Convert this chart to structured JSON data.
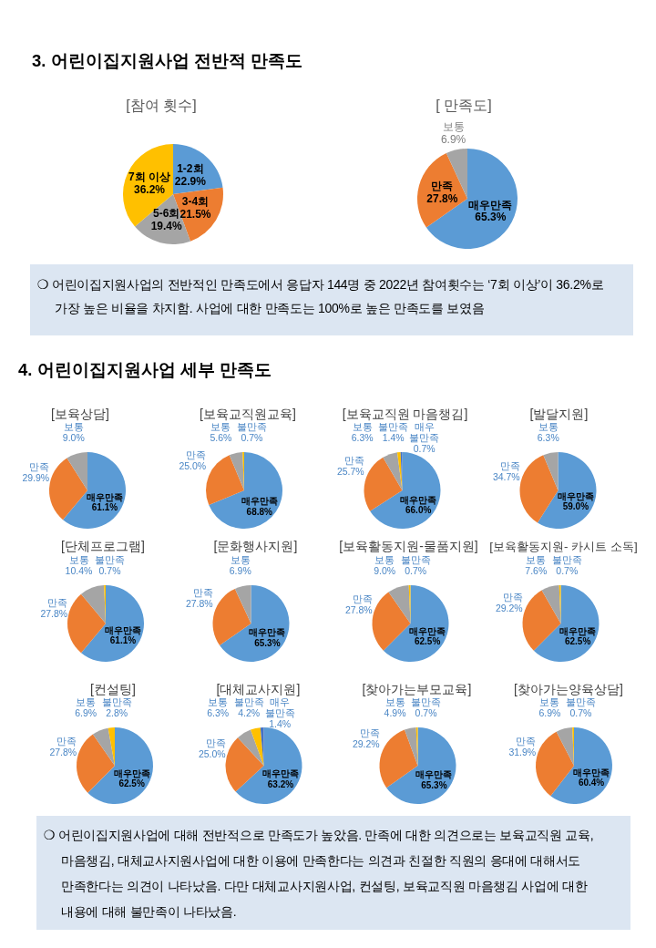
{
  "chart_data": [
    {
      "type": "other",
      "title": "3. 어린이집지원사업 전반적 만족도"
    },
    {
      "type": "pie",
      "title": "[참여 횟수]",
      "categories": [
        "1-2회",
        "3-4회",
        "5-6회",
        "7회 이상"
      ],
      "values": [
        22.9,
        21.5,
        19.4,
        36.2
      ],
      "value_labels": [
        "22.9%",
        "21.5%",
        "19.4%",
        "36.2%"
      ],
      "colors": [
        "#5b9bd5",
        "#ed7d31",
        "#a5a5a5",
        "#ffc000"
      ]
    },
    {
      "type": "pie",
      "title": "[ 만족도]",
      "categories": [
        "매우만족",
        "만족",
        "보통"
      ],
      "values": [
        65.3,
        27.8,
        6.9
      ],
      "value_labels": [
        "65.3%",
        "27.8%",
        "6.9%"
      ],
      "colors": [
        "#5b9bd5",
        "#ed7d31",
        "#a5a5a5"
      ]
    },
    {
      "type": "other",
      "annotations": [
        "❍ 어린이집지원사업의 전반적인 만족도에서 응답자 144명 중 2022년 참여횟수는 ‘7회 이상’이 36.2%로 가장 높은 비율을 차지함. 사업에 대한 만족도는 100%로 높은 만족도를 보였음"
      ]
    },
    {
      "type": "other",
      "title": "4. 어린이집지원사업 세부 만족도"
    },
    {
      "type": "pie",
      "title": "[보육상담]",
      "categories": [
        "매우만족",
        "만족",
        "보통"
      ],
      "values": [
        61.1,
        29.9,
        9.0
      ],
      "value_labels": [
        "61.1%",
        "29.9%",
        "9.0%"
      ],
      "colors": [
        "#5b9bd5",
        "#ed7d31",
        "#a5a5a5"
      ]
    },
    {
      "type": "pie",
      "title": "[보육교직원교육]",
      "categories": [
        "매우만족",
        "만족",
        "보통",
        "불만족"
      ],
      "values": [
        68.8,
        25.0,
        5.6,
        0.7
      ],
      "value_labels": [
        "68.8%",
        "25.0%",
        "5.6%",
        "0.7%"
      ],
      "colors": [
        "#5b9bd5",
        "#ed7d31",
        "#a5a5a5",
        "#ffc000"
      ]
    },
    {
      "type": "pie",
      "title": "[보육교직원 마음챙김]",
      "categories": [
        "매우만족",
        "만족",
        "보통",
        "불만족",
        "매우\n불만족"
      ],
      "values": [
        66.0,
        25.7,
        6.3,
        1.4,
        0.7
      ],
      "value_labels": [
        "66.0%",
        "25.7%",
        "6.3%",
        "1.4%",
        "0.7%"
      ],
      "colors": [
        "#5b9bd5",
        "#ed7d31",
        "#a5a5a5",
        "#ffc000",
        "#4472c4"
      ]
    },
    {
      "type": "pie",
      "title": "[발달지원]",
      "categories": [
        "매우만족",
        "만족",
        "보통"
      ],
      "values": [
        59.0,
        34.7,
        6.3
      ],
      "value_labels": [
        "59.0%",
        "34.7%",
        "6.3%"
      ],
      "colors": [
        "#5b9bd5",
        "#ed7d31",
        "#a5a5a5"
      ]
    },
    {
      "type": "pie",
      "title": "[단체프로그램]",
      "categories": [
        "매우만족",
        "만족",
        "보통",
        "불만족"
      ],
      "values": [
        61.1,
        27.8,
        10.4,
        0.7
      ],
      "value_labels": [
        "61.1%",
        "27.8%",
        "10.4%",
        "0.7%"
      ],
      "colors": [
        "#5b9bd5",
        "#ed7d31",
        "#a5a5a5",
        "#ffc000"
      ]
    },
    {
      "type": "pie",
      "title": "[문화행사지원]",
      "categories": [
        "매우만족",
        "만족",
        "보통"
      ],
      "values": [
        65.3,
        27.8,
        6.9
      ],
      "value_labels": [
        "65.3%",
        "27.8%",
        "6.9%"
      ],
      "colors": [
        "#5b9bd5",
        "#ed7d31",
        "#a5a5a5"
      ]
    },
    {
      "type": "pie",
      "title": "[보육활동지원-물품지원]",
      "categories": [
        "매우만족",
        "만족",
        "보통",
        "불만족"
      ],
      "values": [
        62.5,
        27.8,
        9.0,
        0.7
      ],
      "value_labels": [
        "62.5%",
        "27.8%",
        "9.0%",
        "0.7%"
      ],
      "colors": [
        "#5b9bd5",
        "#ed7d31",
        "#a5a5a5",
        "#ffc000"
      ]
    },
    {
      "type": "pie",
      "title": "[보육활동지원- 카시트 소독]",
      "categories": [
        "매우만족",
        "만족",
        "보통",
        "불만족"
      ],
      "values": [
        62.5,
        29.2,
        7.6,
        0.7
      ],
      "value_labels": [
        "62.5%",
        "29.2%",
        "7.6%",
        "0.7%"
      ],
      "colors": [
        "#5b9bd5",
        "#ed7d31",
        "#a5a5a5",
        "#ffc000"
      ]
    },
    {
      "type": "pie",
      "title": "[컨설팅]",
      "categories": [
        "매우만족",
        "만족",
        "보통",
        "불만족"
      ],
      "values": [
        62.5,
        27.8,
        6.9,
        2.8
      ],
      "value_labels": [
        "62.5%",
        "27.8%",
        "6.9%",
        "2.8%"
      ],
      "colors": [
        "#5b9bd5",
        "#ed7d31",
        "#a5a5a5",
        "#ffc000"
      ]
    },
    {
      "type": "pie",
      "title": "[대체교사지원]",
      "categories": [
        "매우만족",
        "만족",
        "보통",
        "불만족",
        "매우\n불만족"
      ],
      "values": [
        63.2,
        25.0,
        6.3,
        4.2,
        1.4
      ],
      "value_labels": [
        "63.2%",
        "25.0%",
        "6.3%",
        "4.2%",
        "1.4%"
      ],
      "colors": [
        "#5b9bd5",
        "#ed7d31",
        "#a5a5a5",
        "#ffc000",
        "#4472c4"
      ]
    },
    {
      "type": "pie",
      "title": "[찾아가는부모교육]",
      "categories": [
        "매우만족",
        "만족",
        "보통",
        "불만족"
      ],
      "values": [
        65.3,
        29.2,
        4.9,
        0.7
      ],
      "value_labels": [
        "65.3%",
        "29.2%",
        "4.9%",
        "0.7%"
      ],
      "colors": [
        "#5b9bd5",
        "#ed7d31",
        "#a5a5a5",
        "#ffc000"
      ]
    },
    {
      "type": "pie",
      "title": "[찾아가는양육상담]",
      "categories": [
        "매우만족",
        "만족",
        "보통",
        "불만족"
      ],
      "values": [
        60.4,
        31.9,
        6.9,
        0.7
      ],
      "value_labels": [
        "60.4%",
        "31.9%",
        "6.9%",
        "0.7%"
      ],
      "colors": [
        "#5b9bd5",
        "#ed7d31",
        "#a5a5a5",
        "#ffc000"
      ]
    },
    {
      "type": "other",
      "annotations": [
        "❍ 어린이집지원사업에 대해 전반적으로 만족도가 높았음. 만족에 대한 의견으로는 보육교직원 교육, 마음챙김, 대체교사지원사업에 대한 이용에 만족한다는 의견과 친절한 직원의 응대에 대해서도 만족한다는 의견이 나타났음. 다만 대체교사지원사업, 컨설팅, 보육교직원 마음챙김 사업에 대한 내용에 대해 불만족이 나타났음."
      ]
    }
  ]
}
